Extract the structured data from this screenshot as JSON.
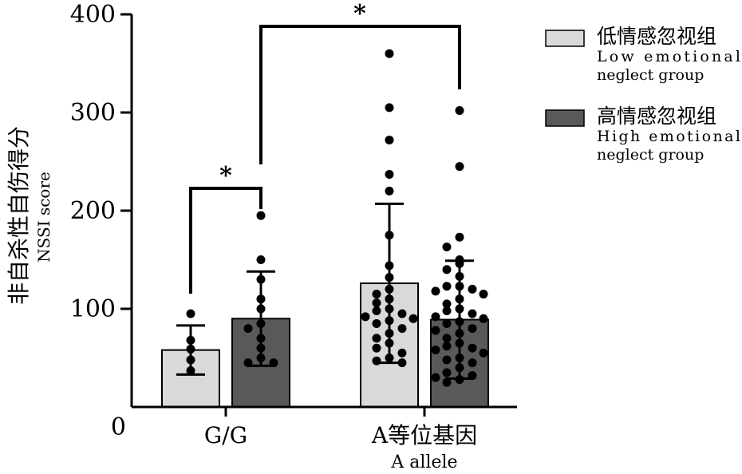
{
  "chart_data": {
    "type": "bar",
    "ylabel_cn": "非自杀性自伤得分",
    "ylabel_en": "NSSI score",
    "ylim": [
      0,
      400
    ],
    "yticks": [
      0,
      100,
      200,
      300,
      400
    ],
    "categories": [
      {
        "label": "G/G",
        "sublabel": ""
      },
      {
        "label": "A等位基因",
        "sublabel": "A allele"
      }
    ],
    "series": [
      {
        "name_cn": "低情感忽视组",
        "name_en_line1": "Low emotional",
        "name_en_line2": "neglect group",
        "color": "#d9d9d9",
        "values": [
          58,
          126
        ],
        "sd": [
          25,
          81
        ],
        "points": [
          [
            95,
            68,
            59,
            48,
            37
          ],
          [
            360,
            305,
            272,
            237,
            220,
            175,
            144,
            132,
            120,
            115,
            110,
            106,
            100,
            98,
            95,
            92,
            90,
            88,
            85,
            80,
            75,
            70,
            65,
            60,
            55,
            50,
            47,
            45
          ]
        ]
      },
      {
        "name_cn": "高情感忽视组",
        "name_en_line1": "High emotional",
        "name_en_line2": "neglect group",
        "color": "#595959",
        "values": [
          90,
          89
        ],
        "sd": [
          48,
          60
        ],
        "points": [
          [
            195,
            150,
            130,
            110,
            100,
            85,
            80,
            70,
            60,
            50,
            45,
            45
          ],
          [
            302,
            245,
            173,
            163,
            150,
            146,
            140,
            133,
            123,
            123,
            120,
            118,
            115,
            110,
            105,
            100,
            98,
            95,
            92,
            90,
            87,
            85,
            80,
            78,
            75,
            70,
            65,
            62,
            60,
            58,
            55,
            50,
            48,
            45,
            40,
            35,
            32,
            30,
            28,
            25
          ]
        ]
      }
    ],
    "significance": [
      {
        "label": "*"
      },
      {
        "label": "*"
      }
    ],
    "legend_position": "top-right"
  }
}
